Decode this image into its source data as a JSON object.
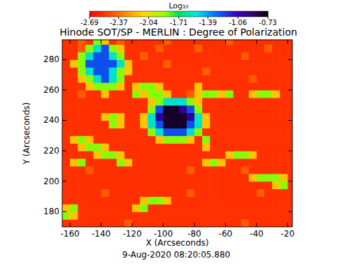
{
  "chart_data": {
    "type": "heatmap",
    "title": "Hinode SOT/SP - MERLIN : Degree of Polarization",
    "x_label": "X (Arcseconds)",
    "y_label": "Y (Arcseconds)",
    "annotation": "9-Aug-2020 08:20:05.880",
    "xlim": [
      -165,
      -17
    ],
    "ylim": [
      170,
      293
    ],
    "xticks": [
      -160,
      -140,
      -120,
      -100,
      -80,
      -60,
      -40,
      -20
    ],
    "yticks": [
      180,
      200,
      220,
      240,
      260,
      280
    ],
    "x": [
      -162.5,
      -157.5,
      -152.5,
      -147.5,
      -142.5,
      -137.5,
      -132.5,
      -127.5,
      -122.5,
      -117.5,
      -112.5,
      -107.5,
      -102.5,
      -97.5,
      -92.5,
      -87.5,
      -82.5,
      -77.5,
      -72.5,
      -67.5,
      -62.5,
      -57.5,
      -52.5,
      -47.5,
      -42.5,
      -37.5,
      -32.5,
      -27.5,
      -22.5,
      -17.5
    ],
    "y": [
      172.5,
      177.5,
      182.5,
      187.5,
      192.5,
      197.5,
      202.5,
      207.5,
      212.5,
      217.5,
      222.5,
      227.5,
      232.5,
      237.5,
      242.5,
      247.5,
      252.5,
      257.5,
      262.5,
      267.5,
      272.5,
      277.5,
      282.5,
      287.5,
      292.5
    ],
    "z": [
      [
        -2.55,
        -2.55,
        -2.55,
        -2.55,
        -2.55,
        -2.55,
        -2.55,
        -2.55,
        -2.42,
        -2.55,
        -2.55,
        -2.55,
        -2.55,
        -2.55,
        -2.55,
        -2.55,
        -2.55,
        -2.55,
        -2.55,
        -2.55,
        -2.55,
        -2.55,
        -2.55,
        -2.42,
        -2.55,
        -2.55,
        -2.55,
        -2.55,
        -2.55,
        -2.55
      ],
      [
        -1.85,
        -2.15,
        -2.55,
        -2.55,
        -2.55,
        -2.55,
        -2.55,
        -2.55,
        -2.55,
        -2.55,
        -2.55,
        -2.55,
        -2.55,
        -2.55,
        -2.55,
        -2.55,
        -2.55,
        -2.55,
        -2.55,
        -2.55,
        -2.55,
        -2.55,
        -2.55,
        -2.55,
        -2.55,
        -2.55,
        -2.55,
        -2.55,
        -2.55,
        -2.55
      ],
      [
        -2.15,
        -1.85,
        -2.55,
        -2.55,
        -2.55,
        -2.55,
        -2.55,
        -2.55,
        -2.55,
        -2.15,
        -1.85,
        -2.55,
        -2.55,
        -2.55,
        -2.55,
        -2.55,
        -2.55,
        -2.55,
        -2.55,
        -2.55,
        -2.55,
        -2.55,
        -2.55,
        -2.55,
        -2.55,
        -2.55,
        -2.55,
        -2.55,
        -2.55,
        -2.55
      ],
      [
        -2.55,
        -2.55,
        -2.55,
        -2.55,
        -2.55,
        -2.55,
        -2.55,
        -2.55,
        -2.55,
        -2.55,
        -2.15,
        -1.85,
        -1.85,
        -2.15,
        -2.55,
        -2.55,
        -2.55,
        -2.55,
        -2.55,
        -2.55,
        -2.55,
        -2.55,
        -2.55,
        -2.55,
        -2.55,
        -2.55,
        -2.55,
        -2.55,
        -2.55,
        -2.55
      ],
      [
        -2.55,
        -2.55,
        -2.55,
        -2.55,
        -2.55,
        -2.42,
        -2.55,
        -2.55,
        -2.55,
        -2.55,
        -2.55,
        -2.55,
        -2.55,
        -2.55,
        -2.55,
        -2.55,
        -2.42,
        -2.55,
        -2.55,
        -2.55,
        -2.55,
        -2.55,
        -2.55,
        -2.55,
        -2.55,
        -2.42,
        -2.55,
        -2.55,
        -2.55,
        -2.55
      ],
      [
        -2.55,
        -2.55,
        -2.55,
        -2.55,
        -2.55,
        -2.55,
        -2.55,
        -2.55,
        -2.55,
        -2.55,
        -2.55,
        -2.55,
        -2.55,
        -2.55,
        -2.55,
        -2.55,
        -2.55,
        -2.55,
        -2.55,
        -2.55,
        -2.55,
        -2.55,
        -2.55,
        -2.55,
        -2.55,
        -2.55,
        -2.55,
        -2.15,
        -1.85,
        -2.55
      ],
      [
        -2.55,
        -2.55,
        -2.55,
        -2.55,
        -2.55,
        -2.55,
        -2.55,
        -2.55,
        -2.55,
        -2.55,
        -2.55,
        -2.55,
        -2.55,
        -2.55,
        -2.55,
        -2.55,
        -2.55,
        -2.55,
        -2.55,
        -2.55,
        -2.55,
        -2.55,
        -2.55,
        -2.55,
        -2.15,
        -1.85,
        -1.85,
        -1.85,
        -2.15,
        -2.55
      ],
      [
        -2.55,
        -2.55,
        -2.55,
        -2.42,
        -2.55,
        -2.55,
        -2.55,
        -2.55,
        -2.55,
        -2.55,
        -2.55,
        -2.55,
        -2.55,
        -2.55,
        -2.55,
        -2.55,
        -2.42,
        -2.55,
        -2.55,
        -2.55,
        -2.55,
        -2.55,
        -2.55,
        -2.42,
        -2.55,
        -2.55,
        -2.55,
        -2.55,
        -2.55,
        -2.55
      ],
      [
        -2.55,
        -2.15,
        -1.85,
        -2.55,
        -2.55,
        -2.55,
        -2.55,
        -1.85,
        -2.15,
        -2.55,
        -2.55,
        -2.55,
        -2.55,
        -2.55,
        -2.55,
        -2.55,
        -2.55,
        -2.55,
        -2.15,
        -1.85,
        -2.15,
        -2.55,
        -2.55,
        -2.55,
        -2.55,
        -2.55,
        -2.55,
        -2.55,
        -2.55,
        -2.55
      ],
      [
        -2.55,
        -2.55,
        -2.55,
        -2.55,
        -2.15,
        -1.85,
        -1.85,
        -2.15,
        -2.55,
        -2.55,
        -2.55,
        -2.55,
        -2.55,
        -2.55,
        -2.55,
        -2.55,
        -2.55,
        -2.55,
        -2.55,
        -2.55,
        -2.55,
        -2.15,
        -1.85,
        -1.85,
        -2.15,
        -2.55,
        -2.55,
        -2.55,
        -2.55,
        -2.55
      ],
      [
        -2.55,
        -2.55,
        -2.15,
        -1.85,
        -1.85,
        -2.15,
        -2.55,
        -2.55,
        -2.55,
        -2.55,
        -2.55,
        -2.55,
        -2.55,
        -2.55,
        -2.55,
        -2.55,
        -2.55,
        -2.55,
        -2.15,
        -2.55,
        -2.55,
        -2.55,
        -2.55,
        -2.55,
        -2.55,
        -2.55,
        -2.55,
        -2.55,
        -2.55,
        -2.55
      ],
      [
        -2.55,
        -2.15,
        -1.85,
        -2.15,
        -2.55,
        -2.55,
        -2.55,
        -2.55,
        -2.55,
        -2.55,
        -2.55,
        -2.55,
        -2.15,
        -1.85,
        -1.85,
        -1.85,
        -2.15,
        -2.55,
        -1.85,
        -2.55,
        -2.55,
        -2.55,
        -2.55,
        -2.55,
        -2.55,
        -2.55,
        -2.55,
        -2.55,
        -2.55,
        -2.55
      ],
      [
        -2.55,
        -2.55,
        -2.55,
        -2.55,
        -2.55,
        -2.55,
        -2.55,
        -2.55,
        -2.55,
        -2.55,
        -2.55,
        -1.85,
        -1.55,
        -1.25,
        -1.25,
        -1.25,
        -1.55,
        -1.85,
        -2.55,
        -2.55,
        -2.55,
        -2.55,
        -2.55,
        -2.55,
        -2.55,
        -2.55,
        -2.55,
        -2.55,
        -2.55,
        -2.55
      ],
      [
        -2.55,
        -2.55,
        -2.55,
        -2.55,
        -2.55,
        -2.55,
        -1.85,
        -2.15,
        -2.55,
        -2.55,
        -2.15,
        -1.55,
        -1.25,
        -0.8,
        -0.8,
        -0.8,
        -1.25,
        -1.55,
        -2.15,
        -2.55,
        -2.55,
        -2.55,
        -2.55,
        -2.55,
        -2.55,
        -2.55,
        -2.55,
        -2.55,
        -2.55,
        -2.55
      ],
      [
        -2.55,
        -2.55,
        -2.55,
        -2.55,
        -2.55,
        -2.15,
        -1.85,
        -2.15,
        -2.55,
        -2.55,
        -2.15,
        -1.55,
        -1,
        -0.8,
        -0.8,
        -0.8,
        -1,
        -1.55,
        -2.15,
        -2.55,
        -2.55,
        -2.55,
        -2.55,
        -2.55,
        -2.55,
        -2.55,
        -2.55,
        -2.55,
        -2.55,
        -2.55
      ],
      [
        -2.55,
        -2.55,
        -2.55,
        -2.55,
        -2.55,
        -2.55,
        -2.55,
        -2.55,
        -2.55,
        -2.55,
        -2.55,
        -1.85,
        -1.25,
        -0.8,
        -0.8,
        -1,
        -1.25,
        -1.85,
        -2.55,
        -2.55,
        -2.55,
        -2.55,
        -2.55,
        -2.55,
        -2.55,
        -2.55,
        -2.55,
        -2.55,
        -2.55,
        -2.55
      ],
      [
        -2.55,
        -2.55,
        -2.55,
        -2.55,
        -2.55,
        -2.55,
        -2.55,
        -2.55,
        -2.55,
        -2.55,
        -2.55,
        -2.15,
        -1.85,
        -1.55,
        -1.55,
        -1.55,
        -1.85,
        -2.15,
        -2.55,
        -2.55,
        -2.55,
        -2.55,
        -2.55,
        -2.55,
        -2.55,
        -2.55,
        -2.55,
        -2.55,
        -2.55,
        -2.55
      ],
      [
        -2.55,
        -2.55,
        -2.42,
        -2.55,
        -2.55,
        -2.15,
        -2.55,
        -2.55,
        -2.55,
        -1.85,
        -2.15,
        -1.85,
        -1.85,
        -2.15,
        -2.55,
        -2.55,
        -2.42,
        -2.15,
        -1.85,
        -1.85,
        -2.15,
        -1.85,
        -2.55,
        -2.55,
        -2.15,
        -1.85,
        -1.85,
        -2.15,
        -2.55,
        -2.55
      ],
      [
        -2.55,
        -2.55,
        -2.55,
        -2.15,
        -1.85,
        -1.85,
        -1.85,
        -2.15,
        -2.55,
        -2.15,
        -1.85,
        -1.85,
        -2.15,
        -2.55,
        -2.55,
        -2.55,
        -2.55,
        -2.15,
        -2.55,
        -2.55,
        -2.55,
        -2.55,
        -2.55,
        -2.55,
        -2.55,
        -2.55,
        -2.55,
        -2.55,
        -2.55,
        -2.55
      ],
      [
        -2.55,
        -2.55,
        -2.15,
        -1.85,
        -1.55,
        -1.25,
        -1.55,
        -1.85,
        -2.55,
        -2.55,
        -2.55,
        -2.55,
        -2.55,
        -2.55,
        -2.55,
        -2.55,
        -2.55,
        -2.55,
        -2.55,
        -2.55,
        -2.55,
        -2.55,
        -2.55,
        -2.55,
        -2.42,
        -2.55,
        -2.55,
        -2.55,
        -2.55,
        -2.55
      ],
      [
        -2.55,
        -2.55,
        -1.85,
        -1.55,
        -1.25,
        -1.25,
        -1.55,
        -1.85,
        -2.15,
        -2.55,
        -2.55,
        -2.55,
        -2.55,
        -2.55,
        -2.55,
        -2.55,
        -2.55,
        -2.55,
        -2.42,
        -2.55,
        -2.55,
        -2.55,
        -2.55,
        -2.55,
        -2.55,
        -2.55,
        -2.55,
        -2.55,
        -2.55,
        -2.55
      ],
      [
        -2.55,
        -2.15,
        -1.85,
        -1.25,
        -1.25,
        -1.25,
        -1.25,
        -1.55,
        -2.15,
        -2.55,
        -2.55,
        -2.55,
        -2.55,
        -2.42,
        -2.55,
        -2.55,
        -2.55,
        -2.55,
        -2.55,
        -2.55,
        -2.55,
        -2.55,
        -2.55,
        -2.55,
        -2.55,
        -2.55,
        -2.55,
        -2.55,
        -2.55,
        -2.55
      ],
      [
        -2.55,
        -2.55,
        -1.85,
        -1.55,
        -1.25,
        -1.25,
        -1.55,
        -1.85,
        -2.55,
        -2.55,
        -2.42,
        -2.55,
        -2.55,
        -2.55,
        -2.55,
        -2.55,
        -2.55,
        -2.55,
        -2.55,
        -2.55,
        -2.55,
        -2.55,
        -2.55,
        -2.42,
        -2.55,
        -2.55,
        -2.55,
        -2.55,
        -2.55,
        -2.55
      ],
      [
        -2.55,
        -2.55,
        -2.42,
        -1.85,
        -1.55,
        -1.25,
        -1.85,
        -2.15,
        -2.55,
        -2.55,
        -2.55,
        -2.55,
        -2.42,
        -2.55,
        -2.55,
        -2.55,
        -2.55,
        -2.42,
        -2.55,
        -2.55,
        -2.55,
        -2.55,
        -2.55,
        -2.55,
        -2.55,
        -2.55,
        -2.42,
        -2.55,
        -2.55,
        -2.55
      ],
      [
        -2.55,
        -2.55,
        -2.42,
        -2.55,
        -1.85,
        -2.15,
        -2.55,
        -2.42,
        -2.55,
        -2.55,
        -2.55,
        -2.55,
        -2.55,
        -2.42,
        -2.55,
        -2.55,
        -2.55,
        -2.55,
        -2.55,
        -2.55,
        -2.55,
        -2.42,
        -2.55,
        -2.55,
        -2.55,
        -2.55,
        -2.55,
        -2.55,
        -2.55,
        -2.55
      ]
    ],
    "colorbar_label": "Log₁₀",
    "colorbar_range": [
      -2.69,
      -0.73
    ],
    "colorbar_ticks": [
      -2.69,
      -2.37,
      -2.04,
      -1.71,
      -1.39,
      -1.06,
      -0.73
    ]
  }
}
